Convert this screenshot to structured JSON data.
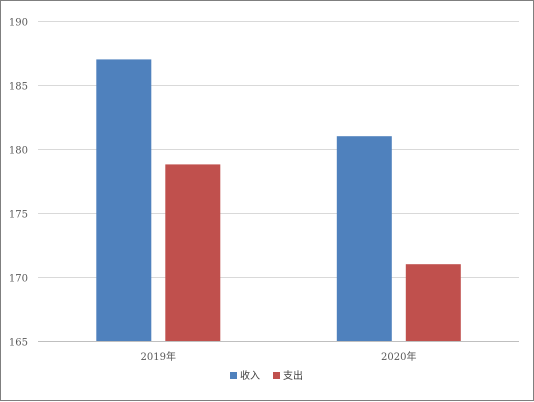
{
  "chart_data": {
    "type": "bar",
    "categories": [
      "2019年",
      "2020年"
    ],
    "series": [
      {
        "name": "收入",
        "values": [
          187,
          181
        ],
        "color": "#4f81bd"
      },
      {
        "name": "支出",
        "values": [
          178.8,
          171
        ],
        "color": "#c0504d"
      }
    ],
    "ylim": [
      165,
      190
    ],
    "yticks": [
      165,
      170,
      175,
      180,
      185,
      190
    ],
    "grid": true,
    "legend": "bottom",
    "gridline_color": "#d9d9d9",
    "axis_line_color": "#bfbfbf"
  }
}
